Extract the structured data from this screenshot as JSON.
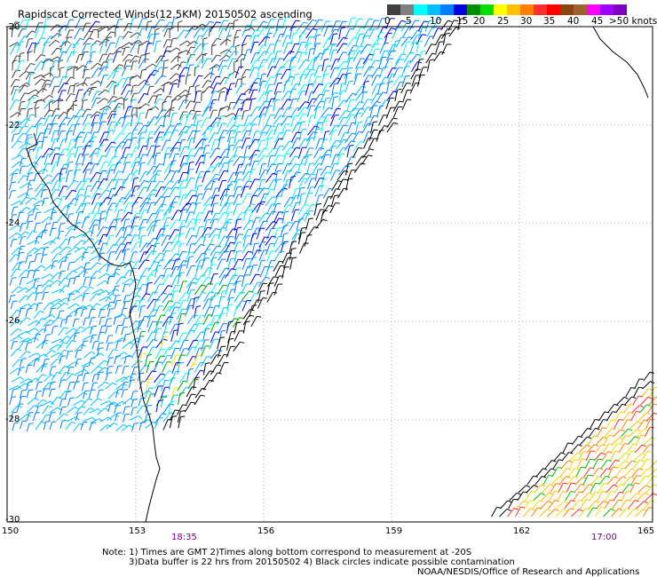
{
  "title": "Rapidscat Corrected Winds(12.5KM) 20150502 ascending",
  "colorbar": {
    "colors": [
      "#404040",
      "#808080",
      "#00ffff",
      "#00c0ff",
      "#0080ff",
      "#0000e0",
      "#009000",
      "#00e000",
      "#ffff00",
      "#ffc000",
      "#ff8000",
      "#ff3030",
      "#ff0000",
      "#8b4513",
      "#a06030",
      "#ff00ff",
      "#a000ff",
      "#8000c0"
    ],
    "labels": [
      "0",
      "5",
      "10",
      "15",
      "20",
      "25",
      "30",
      "35",
      "40",
      "45",
      ">50 knots"
    ]
  },
  "lat_labels": [
    "-20",
    "-22",
    "-24",
    "-26",
    "-28",
    "-30"
  ],
  "lon_labels": [
    "150",
    "153",
    "156",
    "159",
    "162",
    "165"
  ],
  "time_labels": [
    "18:35",
    "17:00"
  ],
  "notes": [
    "Note: 1) Times are GMT  2)Times along bottom correspond to measurement at -20S",
    "3)Data buffer is 22 hrs from 20150502  4) Black circles indicate possible contamination",
    "NOAA/NESDIS/Office of Research and Applications"
  ]
}
